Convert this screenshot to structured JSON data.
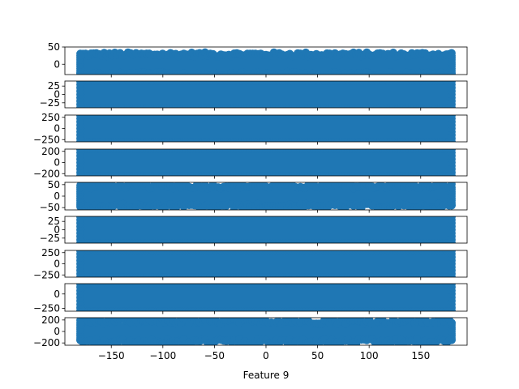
{
  "chart_data": [
    {
      "type": "scatter",
      "ylim": [
        -30,
        50
      ],
      "yticks": [
        50,
        0
      ],
      "ytick_labels": [
        "50",
        "0"
      ],
      "band": [
        -25,
        25
      ],
      "jitter": 6
    },
    {
      "type": "scatter",
      "ylim": [
        -40,
        40
      ],
      "yticks": [
        25,
        0,
        -25
      ],
      "ytick_labels": [
        "25",
        "0",
        "−25"
      ],
      "band": [
        -40,
        40
      ],
      "jitter": 0
    },
    {
      "type": "scatter",
      "ylim": [
        -300,
        300
      ],
      "yticks": [
        250,
        0,
        -250
      ],
      "ytick_labels": [
        "250",
        "0",
        "−250"
      ],
      "band": [
        -300,
        300
      ],
      "jitter": 0
    },
    {
      "type": "scatter",
      "ylim": [
        -240,
        240
      ],
      "yticks": [
        200,
        0,
        -200
      ],
      "ytick_labels": [
        "200",
        "0",
        "−200"
      ],
      "band": [
        -240,
        240
      ],
      "jitter": 0
    },
    {
      "type": "scatter",
      "ylim": [
        -60,
        60
      ],
      "yticks": [
        50,
        0,
        -50
      ],
      "ytick_labels": [
        "50",
        "0",
        "−50"
      ],
      "band": [
        -38,
        38
      ],
      "jitter": 10
    },
    {
      "type": "scatter",
      "ylim": [
        -40,
        40
      ],
      "yticks": [
        25,
        0,
        -25
      ],
      "ytick_labels": [
        "25",
        "0",
        "−25"
      ],
      "band": [
        -40,
        40
      ],
      "jitter": 0
    },
    {
      "type": "scatter",
      "ylim": [
        -300,
        300
      ],
      "yticks": [
        250,
        0,
        -250
      ],
      "ytick_labels": [
        "250",
        "0",
        "−250"
      ],
      "band": [
        -300,
        300
      ],
      "jitter": 0
    },
    {
      "type": "scatter",
      "ylim": [
        -300,
        180
      ],
      "yticks": [
        0,
        -250
      ],
      "ytick_labels": [
        "0",
        "−250"
      ],
      "band": [
        -300,
        180
      ],
      "jitter": 0
    },
    {
      "type": "scatter",
      "ylim": [
        -240,
        240
      ],
      "yticks": [
        200,
        0,
        -200
      ],
      "ytick_labels": [
        "200",
        "0",
        "−200"
      ],
      "band": [
        -150,
        150
      ],
      "jitter": 45
    }
  ],
  "shared_x": {
    "xlim": [
      -195,
      195
    ],
    "data_range": [
      -180,
      180
    ],
    "xticks": [
      -150,
      -100,
      -50,
      0,
      50,
      100,
      150
    ],
    "xtick_labels": [
      "−150",
      "−100",
      "−50",
      "0",
      "50",
      "100",
      "150"
    ],
    "xlabel": "Feature 9"
  },
  "colors": {
    "marker": "#1f77b4",
    "axes": "#000000",
    "background": "#ffffff"
  }
}
